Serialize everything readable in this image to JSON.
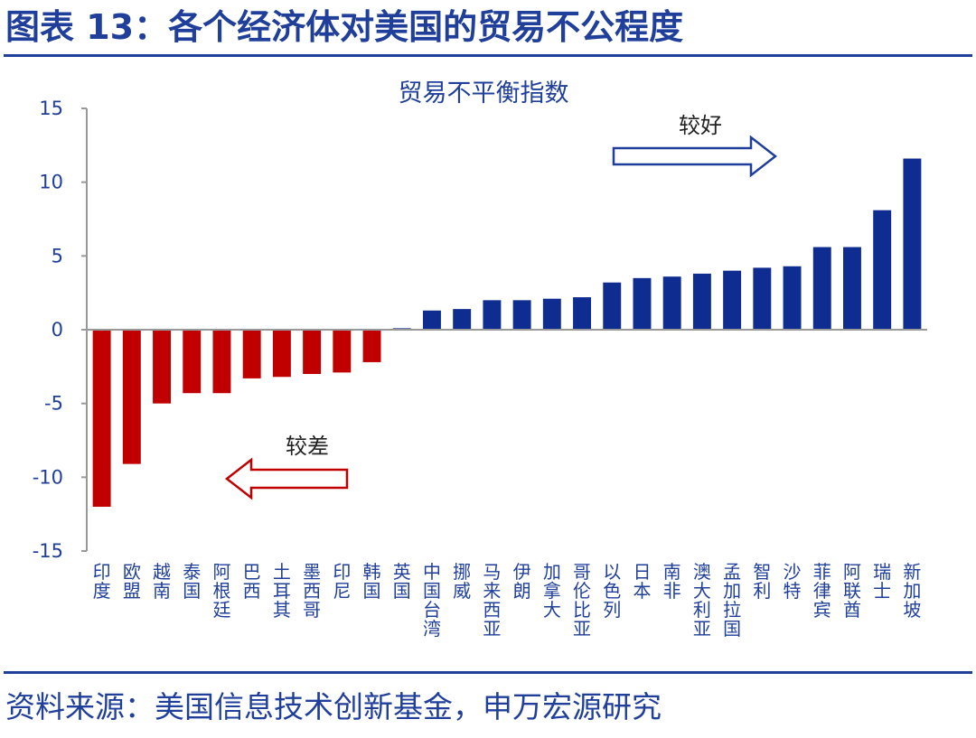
{
  "figure": {
    "title": "图表 13：各个经济体对美国的贸易不公程度",
    "source": "资料来源：美国信息技术创新基金，申万宏源研究"
  },
  "chart_data": {
    "type": "bar",
    "title": "贸易不平衡指数",
    "xlabel": "",
    "ylabel": "",
    "ylim": [
      -15,
      15
    ],
    "yticks": [
      15,
      10,
      5,
      0,
      -5,
      -10,
      -15
    ],
    "grid": false,
    "categories": [
      "印度",
      "欧盟",
      "越南",
      "泰国",
      "阿根廷",
      "巴西",
      "土耳其",
      "墨西哥",
      "印尼",
      "韩国",
      "英国",
      "中国台湾",
      "挪威",
      "马来西亚",
      "伊朗",
      "加拿大",
      "哥伦比亚",
      "以色列",
      "日本",
      "南非",
      "澳大利亚",
      "孟加拉国",
      "智利",
      "沙特",
      "菲律宾",
      "阿联酋",
      "瑞士",
      "新加坡"
    ],
    "values": [
      -12.0,
      -9.1,
      -5.0,
      -4.3,
      -4.3,
      -3.3,
      -3.2,
      -3.0,
      -2.9,
      -2.2,
      0.1,
      1.3,
      1.4,
      2.0,
      2.0,
      2.1,
      2.2,
      3.2,
      3.5,
      3.6,
      3.8,
      4.0,
      4.2,
      4.3,
      5.6,
      5.6,
      8.1,
      11.6
    ],
    "colors": {
      "negative": "#c00000",
      "positive": "#0f2d91",
      "axis": "#999999",
      "text": "#1f3f9a"
    },
    "annotations": {
      "better": {
        "text": "较好",
        "arrow": "right",
        "color": "#1f3f9a"
      },
      "worse": {
        "text": "较差",
        "arrow": "left",
        "color": "#c00000"
      }
    }
  }
}
